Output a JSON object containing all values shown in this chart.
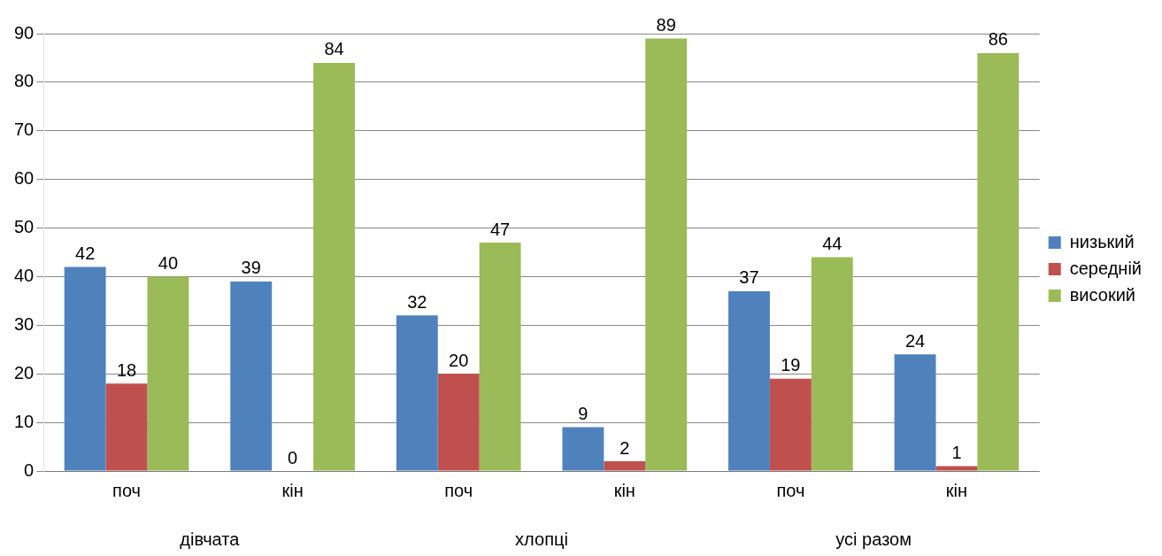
{
  "chart_data": {
    "type": "bar",
    "categories": [
      "поч",
      "кін",
      "поч",
      "кін",
      "поч",
      "кін"
    ],
    "series": [
      {
        "name": "низький",
        "color": "#4f81bd",
        "values": [
          42,
          39,
          32,
          9,
          37,
          24
        ]
      },
      {
        "name": "середній",
        "color": "#c0504d",
        "values": [
          18,
          0,
          20,
          2,
          19,
          1
        ]
      },
      {
        "name": "високий",
        "color": "#9bbb59",
        "values": [
          40,
          84,
          47,
          89,
          44,
          86
        ]
      }
    ],
    "annotations": [
      "дівчата",
      "хлопці",
      "усі разом"
    ],
    "ylim": [
      0,
      90
    ],
    "yticks": [
      0,
      10,
      20,
      30,
      40,
      50,
      60,
      70,
      80,
      90
    ],
    "grid": "y",
    "legend": "right",
    "data_labels": true
  }
}
